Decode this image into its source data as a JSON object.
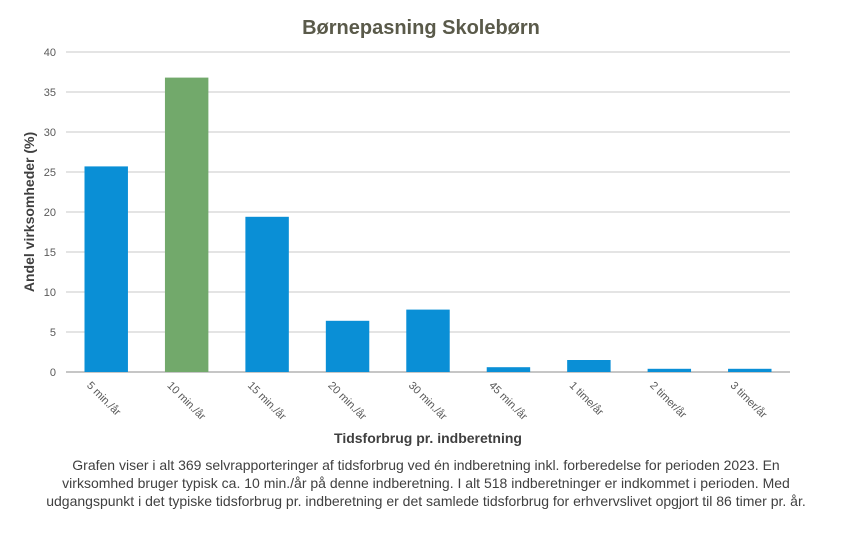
{
  "chart_data": {
    "type": "bar",
    "title": "Børnepasning Skolebørn",
    "xlabel": "Tidsforbrug pr. indberetning",
    "ylabel": "Andel virksomheder (%)",
    "ylim": [
      0,
      40
    ],
    "yticks": [
      0,
      5,
      10,
      15,
      20,
      25,
      30,
      35,
      40
    ],
    "grid": true,
    "legend": "none",
    "categories": [
      "5 min./år",
      "10 min./år",
      "15 min./år",
      "20 min./år",
      "30 min./år",
      "45 min./år",
      "1 time/år",
      "2 timer/år",
      "3 timer/år"
    ],
    "values": [
      25.7,
      36.8,
      19.4,
      6.4,
      7.8,
      0.6,
      1.5,
      0.4,
      0.4
    ],
    "highlight_index": 1,
    "colors": {
      "bar": "#0a8fd6",
      "highlight": "#72a96b",
      "grid": "#c9c9c9",
      "axis": "#8c8c8c"
    }
  },
  "caption": "Grafen viser i alt 369 selvrapporteringer af tidsforbrug ved én indberetning inkl. forberedelse for perioden 2023. En virksomhed bruger typisk ca. 10 min./år på denne indberetning. I alt 518 indberetninger er indkommet i perioden. Med udgangspunkt i det typiske tidsforbrug pr. indberetning er det samlede tidsforbrug for erhvervslivet opgjort til 86 timer pr. år."
}
